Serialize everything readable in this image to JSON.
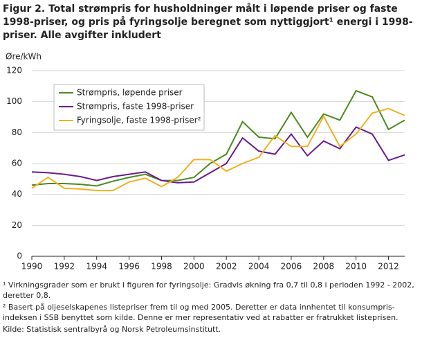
{
  "chart_data": {
    "type": "line",
    "title": "Figur 2. Total strømpris for husholdninger  målt i løpende priser og faste 1998-priser, og pris på fyringsolje beregnet som nyttiggjort¹ energi i 1998-priser. Alle avgifter inkludert",
    "y_label": "Øre/kWh",
    "x": [
      1990,
      1991,
      1992,
      1993,
      1994,
      1995,
      1996,
      1997,
      1998,
      1999,
      2000,
      2001,
      2002,
      2003,
      2004,
      2005,
      2006,
      2007,
      2008,
      2009,
      2010,
      2011,
      2012,
      2013
    ],
    "series": [
      {
        "name": "Strømpris, løpende priser",
        "color": "#4a8a1f",
        "values": [
          46,
          47,
          47,
          46.5,
          45.5,
          48.5,
          51,
          53,
          49,
          49,
          51,
          60,
          66,
          87,
          77,
          76,
          93,
          77,
          92,
          88,
          107,
          103,
          82,
          88
        ]
      },
      {
        "name": "Strømpris, faste 1998-priser",
        "color": "#6a1b8a",
        "values": [
          54.5,
          54,
          53,
          51.5,
          49,
          51.5,
          53,
          54.5,
          49,
          47.5,
          48,
          54,
          60,
          76.5,
          68,
          66,
          79,
          65,
          74.5,
          69.5,
          83.5,
          79,
          62,
          65.5
        ]
      },
      {
        "name": "Fyringsolje,  faste 1998-priser²",
        "color": "#f0b020",
        "values": [
          44,
          51,
          44,
          43.5,
          42.5,
          42.5,
          48,
          50.5,
          45,
          51,
          62.5,
          62.5,
          55,
          60,
          64,
          78,
          71,
          71,
          90.5,
          71,
          79,
          92.5,
          95.5,
          91
        ]
      }
    ],
    "xlim": [
      1990,
      2013
    ],
    "xticks": [
      1990,
      1992,
      1994,
      1996,
      1998,
      2000,
      2002,
      2004,
      2006,
      2008,
      2010,
      2012
    ],
    "ylim": [
      0,
      120
    ],
    "yticks": [
      0,
      20,
      40,
      60,
      80,
      100,
      120
    ],
    "grid": true,
    "footnotes": [
      "¹ Virkningsgrader som  er brukt  i figuren for fyringsolje: Gradvis økning fra 0,7 til 0,8 i perioden 1992 - 2002, deretter 0,8.",
      "² Basert på oljeselskapenes listepriser frem til og med 2005. Deretter er data innhentet  til konsumpris-indeksen i SSB benyttet som kilde. Denne er mer representativ ved at rabatter er fratrukket listeprisen.",
      "Kilde: Statistisk sentralbyrå og Norsk Petroleumsinstitutt."
    ]
  }
}
